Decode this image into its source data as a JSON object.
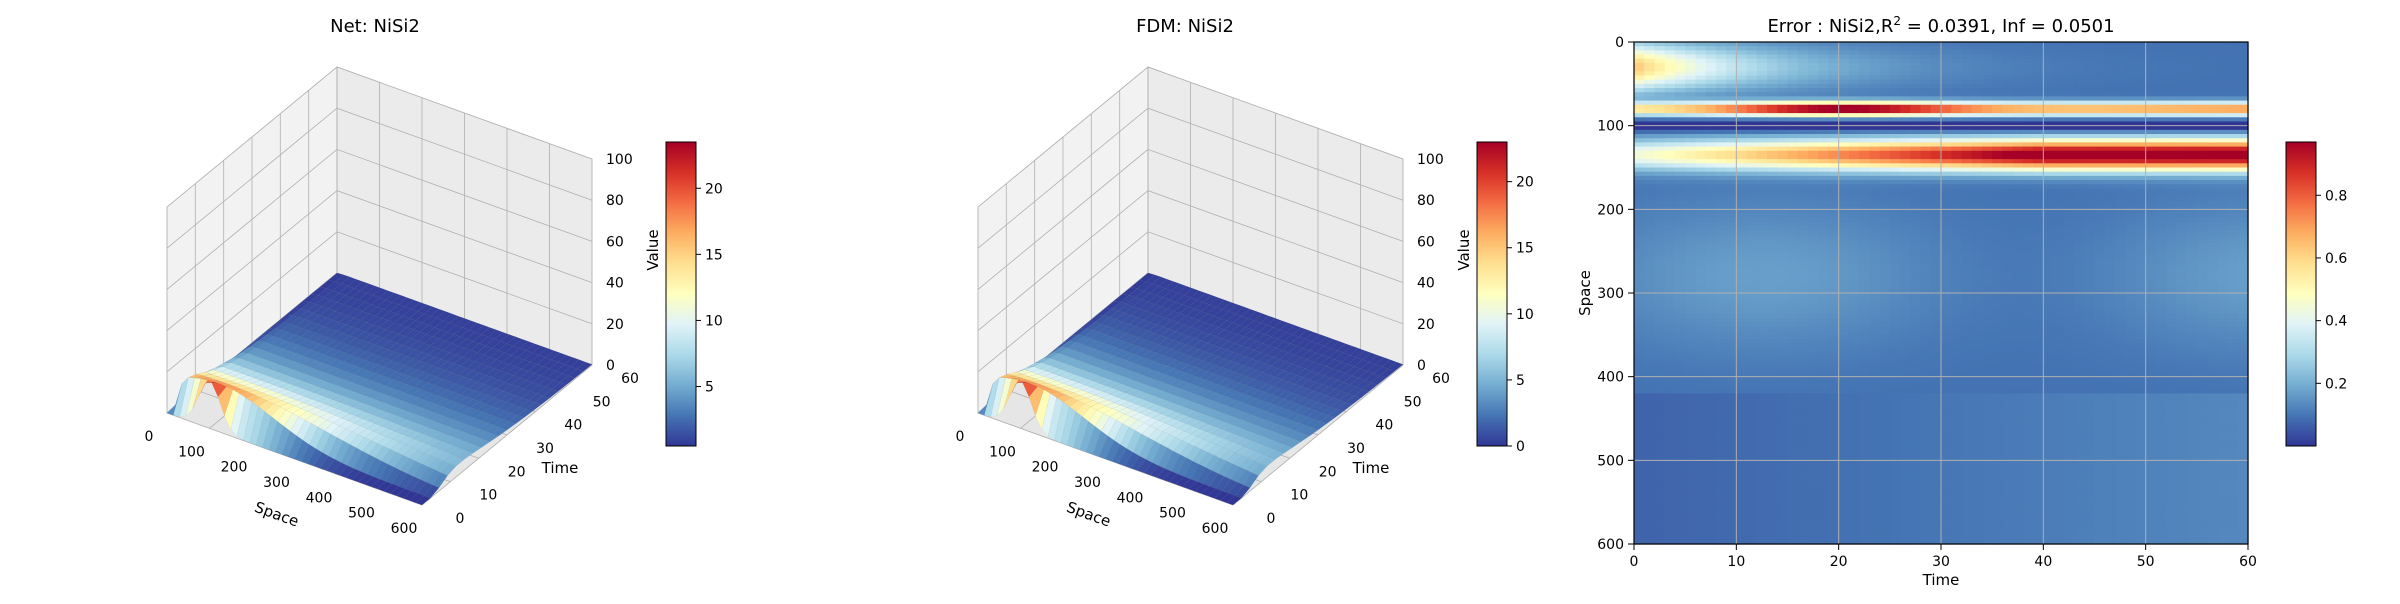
{
  "colors": {
    "cmap": [
      "#313695",
      "#4575b4",
      "#74add1",
      "#abd9e9",
      "#e0f3f8",
      "#ffffbf",
      "#fee090",
      "#fdae61",
      "#f46d43",
      "#d73027",
      "#a50026"
    ],
    "grid": "#b0b0b0",
    "pane": "#f2f2f2"
  },
  "chart_data": [
    {
      "type": "surface3d",
      "title": "Net: NiSi2",
      "xlabel": "Space",
      "ylabel": "Time",
      "zlabel": "Value",
      "x_ticks": [
        "0",
        "100",
        "200",
        "300",
        "400",
        "500",
        "600"
      ],
      "y_ticks": [
        "0",
        "10",
        "20",
        "30",
        "40",
        "50",
        "60"
      ],
      "z_ticks": [
        "0",
        "20",
        "40",
        "60",
        "80",
        "100"
      ],
      "xlim": [
        0,
        600
      ],
      "ylim": [
        0,
        60
      ],
      "zlim": [
        0,
        100
      ],
      "peak_value": 23,
      "peak_space": 100,
      "peak_time": 0,
      "colorbar_ticks": [
        "5",
        "10",
        "15",
        "20"
      ],
      "colorbar_values": [
        5,
        10,
        15,
        20
      ],
      "colorbar_range": [
        0.5,
        23.5
      ]
    },
    {
      "type": "surface3d",
      "title": "FDM: NiSi2",
      "xlabel": "Space",
      "ylabel": "Time",
      "zlabel": "Value",
      "x_ticks": [
        "0",
        "100",
        "200",
        "300",
        "400",
        "500",
        "600"
      ],
      "y_ticks": [
        "0",
        "10",
        "20",
        "30",
        "40",
        "50",
        "60"
      ],
      "z_ticks": [
        "0",
        "20",
        "40",
        "60",
        "80",
        "100"
      ],
      "xlim": [
        0,
        600
      ],
      "ylim": [
        0,
        60
      ],
      "zlim": [
        0,
        100
      ],
      "peak_value": 23,
      "peak_space": 100,
      "peak_time": 0,
      "colorbar_ticks": [
        "0",
        "5",
        "10",
        "15",
        "20"
      ],
      "colorbar_values": [
        0,
        5,
        10,
        15,
        20
      ],
      "colorbar_range": [
        0,
        23
      ]
    },
    {
      "type": "heatmap",
      "title_prefix": "Error : NiSi2,R",
      "title_sup": "2",
      "title_suffix": " = 0.0391, Inf = 0.0501",
      "xlabel": "Time",
      "ylabel": "Space",
      "x_ticks": [
        "0",
        "10",
        "20",
        "30",
        "40",
        "50",
        "60"
      ],
      "y_ticks": [
        "0",
        "100",
        "200",
        "300",
        "400",
        "500",
        "600"
      ],
      "xlim": [
        0,
        60
      ],
      "ylim": [
        0,
        600
      ],
      "grid": true,
      "colorbar_ticks": [
        "0.2",
        "0.4",
        "0.6",
        "0.8"
      ],
      "colorbar_values": [
        0.2,
        0.4,
        0.6,
        0.8
      ],
      "colorbar_range": [
        0.0,
        0.97
      ]
    }
  ]
}
